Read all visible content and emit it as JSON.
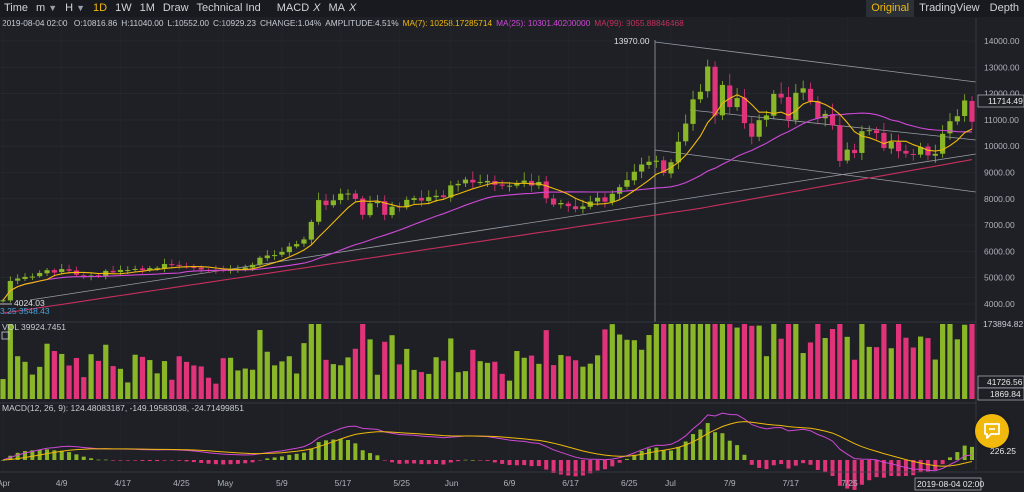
{
  "toolbar": {
    "time": "Time",
    "minute": "m",
    "hour": "H",
    "d1": "1D",
    "w1": "1W",
    "m1": "1M",
    "draw": "Draw",
    "technical": "Technical Ind",
    "macd": "MACD",
    "ma": "MA",
    "close_mark": "X",
    "original": "Original",
    "tradingview": "TradingView",
    "depth": "Depth"
  },
  "info": {
    "date": "2019-08-04 02:00",
    "open": "O:10816.86",
    "high": "H:11040.00",
    "low": "L:10552.00",
    "close": "C:10929.23",
    "change": "CHANGE:1.04%",
    "amplitude": "AMPLITUDE:4.51%",
    "ma7": "MA(7): 10258.17285714",
    "ma25": "MA(25): 10301.40200000",
    "ma99": "MA(99): 9055.88846468"
  },
  "colors": {
    "up": "#8ab728",
    "down": "#e0337a",
    "ma7": "#f0b90b",
    "ma25": "#d048d8",
    "ma99": "#c72f5a",
    "accent": "#f0b90b"
  },
  "price_axis": {
    "labels": [
      "14000.00",
      "13000.00",
      "12000.00",
      "11000.00",
      "10000.00",
      "9000.00",
      "8000.00",
      "7000.00",
      "6000.00",
      "5000.00",
      "4000.00"
    ]
  },
  "price_markers": {
    "high": "13970.00",
    "low": "4024.03",
    "current": "11714.49",
    "lower_left": "3.25 3548.43"
  },
  "volume": {
    "label": "VOL 39924.7451",
    "max": "173894.82",
    "mark1": "41726.56",
    "mark2": "1869.84"
  },
  "macd": {
    "label": "MACD(12, 26, 9): 124.48083187, -149.19583038, -24.71499851",
    "mark": "226.25"
  },
  "date_axis": {
    "labels": [
      "Apr",
      "4/9",
      "4/17",
      "4/25",
      "May",
      "5/9",
      "5/17",
      "5/25",
      "Jun",
      "6/9",
      "6/17",
      "6/25",
      "Jul",
      "7/9",
      "7/17",
      "7/25"
    ],
    "cursor_date": "2019-08-04 02:00"
  },
  "chart_data": {
    "type": "candlestick",
    "x": "daily, 2019-04-01 to 2019-08-04",
    "close": [
      4141,
      4876,
      4969,
      5030,
      5042,
      5180,
      5285,
      5194,
      5330,
      5265,
      5111,
      5050,
      5078,
      5072,
      5260,
      5200,
      5297,
      5290,
      5332,
      5289,
      5361,
      5375,
      5520,
      5477,
      5455,
      5411,
      5370,
      5310,
      5278,
      5270,
      5265,
      5330,
      5343,
      5390,
      5489,
      5760,
      5844,
      5860,
      5982,
      6184,
      6277,
      6457,
      7121,
      7950,
      7760,
      7940,
      8194,
      8200,
      7997,
      7390,
      7830,
      7890,
      7390,
      7700,
      7700,
      7960,
      8024,
      7931,
      8064,
      8115,
      8060,
      8510,
      8568,
      8731,
      8620,
      8640,
      8680,
      8530,
      8497,
      8500,
      8600,
      8692,
      8504,
      8640,
      8020,
      7780,
      7840,
      7720,
      7605,
      7711,
      7897,
      8040,
      7890,
      8190,
      8440,
      8710,
      9030,
      9305,
      9410,
      9450,
      8980,
      9390,
      10170,
      10860,
      11780,
      12070,
      13030,
      11165,
      12330,
      11490,
      11830,
      10880,
      10360,
      10990,
      11170,
      11990,
      11850,
      11010,
      12030,
      12200,
      11720,
      11050,
      11230,
      10800,
      9440,
      9870,
      9740,
      10570,
      10610,
      10500,
      9930,
      10160,
      9810,
      9720,
      9680,
      9970,
      9650,
      9710,
      10470,
      10950,
      11140,
      11740,
      10930
    ],
    "y_axis": {
      "min": 3500,
      "max": 14600
    }
  }
}
